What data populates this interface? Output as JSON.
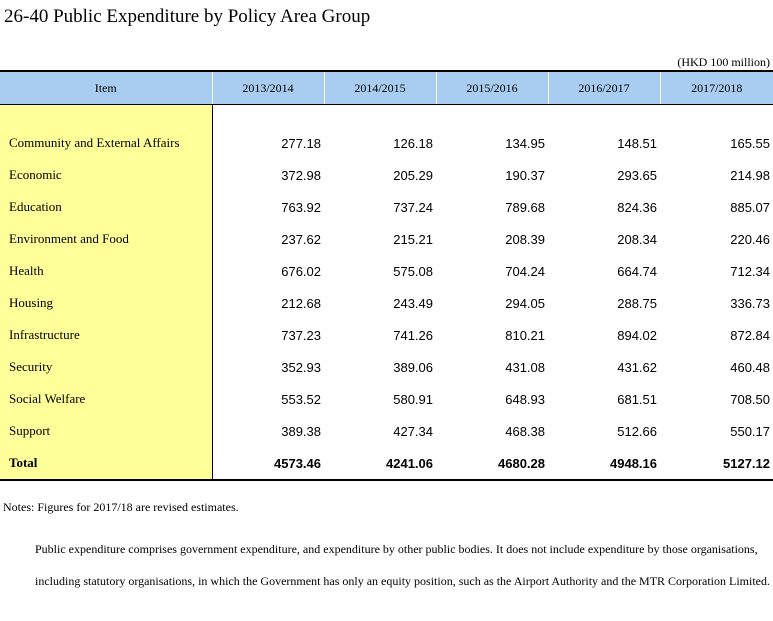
{
  "title": "26-40  Public Expenditure by Policy Area Group",
  "unit": "(HKD 100 million)",
  "table": {
    "headers": [
      "Item",
      "2013/2014",
      "2014/2015",
      "2015/2016",
      "2016/2017",
      "2017/2018"
    ],
    "rows": [
      {
        "item": "Community and External Affairs",
        "values": [
          "277.18",
          "126.18",
          "134.95",
          "148.51",
          "165.55"
        ]
      },
      {
        "item": "Economic",
        "values": [
          "372.98",
          "205.29",
          "190.37",
          "293.65",
          "214.98"
        ]
      },
      {
        "item": "Education",
        "values": [
          "763.92",
          "737.24",
          "789.68",
          "824.36",
          "885.07"
        ]
      },
      {
        "item": "Environment and Food",
        "values": [
          "237.62",
          "215.21",
          "208.39",
          "208.34",
          "220.46"
        ]
      },
      {
        "item": "Health",
        "values": [
          "676.02",
          "575.08",
          "704.24",
          "664.74",
          "712.34"
        ]
      },
      {
        "item": "Housing",
        "values": [
          "212.68",
          "243.49",
          "294.05",
          "288.75",
          "336.73"
        ]
      },
      {
        "item": "Infrastructure",
        "values": [
          "737.23",
          "741.26",
          "810.21",
          "894.02",
          "872.84"
        ]
      },
      {
        "item": "Security",
        "values": [
          "352.93",
          "389.06",
          "431.08",
          "431.62",
          "460.48"
        ]
      },
      {
        "item": "Social Welfare",
        "values": [
          "553.52",
          "580.91",
          "648.93",
          "681.51",
          "708.50"
        ]
      },
      {
        "item": "Support",
        "values": [
          "389.38",
          "427.34",
          "468.38",
          "512.66",
          "550.17"
        ]
      }
    ],
    "total": {
      "item": "Total",
      "values": [
        "4573.46",
        "4241.06",
        "4680.28",
        "4948.16",
        "5127.12"
      ]
    }
  },
  "notes": {
    "line1": "Notes: Figures for 2017/18 are revised estimates.",
    "line2": "Public expenditure comprises government expenditure, and expenditure by other public bodies. It does not include expenditure by those organisations, including statutory organisations, in which the Government has only an equity position, such as the Airport Authority and the MTR Corporation Limited."
  }
}
